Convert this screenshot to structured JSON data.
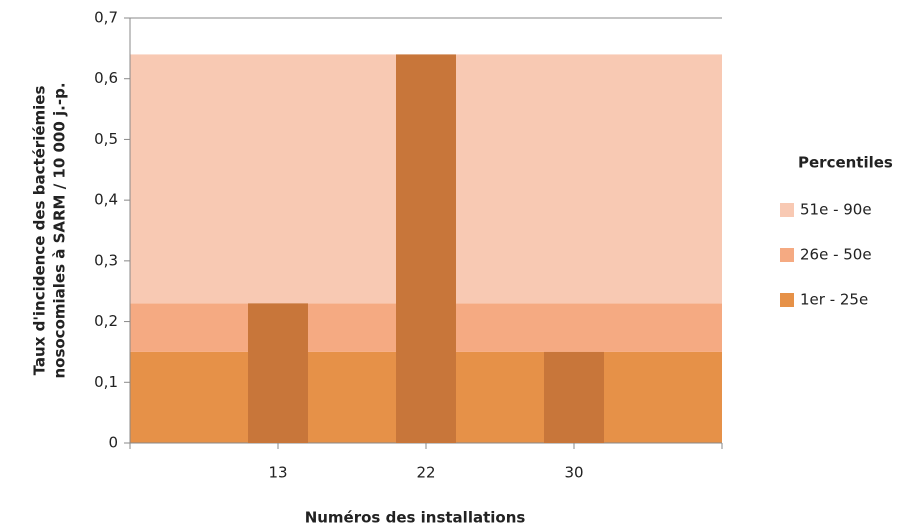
{
  "chart_data": {
    "type": "bar",
    "y_label": [
      "Taux d'incidence des bactériémies",
      "nosocomiales à SARM / 10 000 j.-p."
    ],
    "x_label": "Numéros des installations",
    "categories": [
      "13",
      "22",
      "30"
    ],
    "values": [
      0.23,
      0.64,
      0.15
    ],
    "color": "#c8763a",
    "ylim": [
      0,
      0.7
    ],
    "yticks": [
      0,
      {
        "value": 0.1,
        "label": "0,1"
      },
      {
        "value": 0.2,
        "label": "0,2"
      },
      {
        "value": 0.3,
        "label": "0,3"
      },
      {
        "value": 0.4,
        "label": "0,4"
      },
      {
        "value": 0.5,
        "label": "0,5"
      },
      {
        "value": 0.6,
        "label": "0,6"
      },
      {
        "value": 0.7,
        "label": "0,7"
      }
    ],
    "legend_title": "Percentiles",
    "bands": [
      {
        "name": "1er - 25e",
        "color": "#e69148",
        "value": 0.15
      },
      {
        "name": "26e - 50e",
        "color": "#f5aa82",
        "value": 0.08
      },
      {
        "name": "51e - 90e",
        "color": "#f8c9b3",
        "value": 0.41
      }
    ]
  }
}
